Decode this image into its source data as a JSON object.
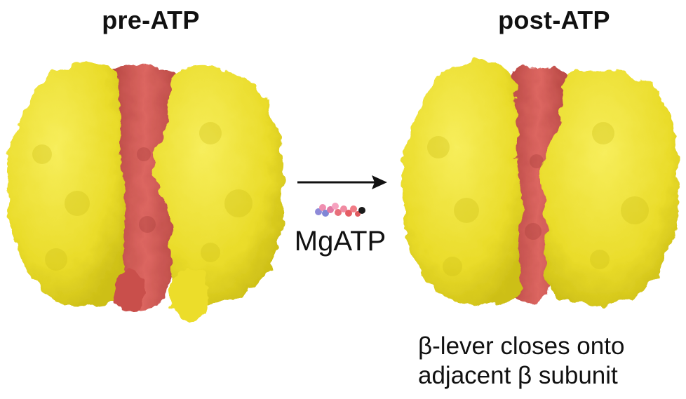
{
  "panels": {
    "pre": {
      "title": "pre-ATP"
    },
    "post": {
      "title": "post-ATP"
    }
  },
  "ligand": {
    "label": "MgATP"
  },
  "caption": {
    "line1": "β-lever closes onto",
    "line2": "adjacent β subunit"
  },
  "colors": {
    "beta_subunit": "#f1e63a",
    "beta_subunit_shade": "#d9cc1c",
    "central_subunit": "#d95f5a",
    "central_subunit_shade": "#b84845",
    "arrow": "#111111",
    "text": "#111111"
  },
  "icons": [
    "reaction-arrow",
    "mgatp-molecule"
  ]
}
